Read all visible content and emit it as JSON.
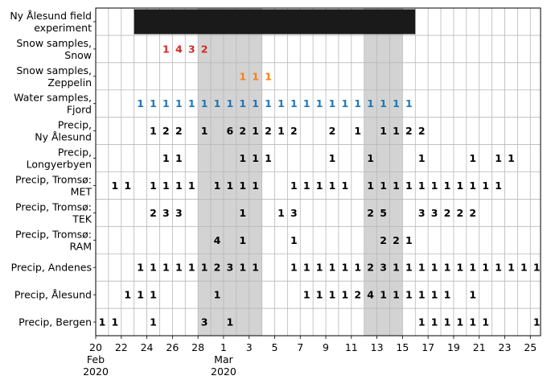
{
  "chart_data": {
    "type": "table",
    "row_labels": [
      [
        "Ny Ålesund field",
        "experiment"
      ],
      [
        "Snow samples,",
        "Snow"
      ],
      [
        "Snow samples,",
        "Zeppelin"
      ],
      [
        "Water samples,",
        "Fjord"
      ],
      [
        "Precip,",
        "Ny Ålesund"
      ],
      [
        "Precip,",
        "Longyerbyen"
      ],
      [
        "Precip, Tromsø:",
        "MET"
      ],
      [
        "Precip, Tromsø:",
        "TEK"
      ],
      [
        "Precip, Tromsø:",
        "RAM"
      ],
      [
        "Precip, Andenes"
      ],
      [
        "Precip, Ålesund"
      ],
      [
        "Precip, Bergen"
      ]
    ],
    "x_ticks": [
      {
        "day": 0,
        "lines": [
          "20",
          "Feb",
          "2020"
        ]
      },
      {
        "day": 2,
        "lines": [
          "22"
        ]
      },
      {
        "day": 4,
        "lines": [
          "24"
        ]
      },
      {
        "day": 6,
        "lines": [
          "26"
        ]
      },
      {
        "day": 8,
        "lines": [
          "28"
        ]
      },
      {
        "day": 10,
        "lines": [
          "1",
          "Mar",
          "2020"
        ]
      },
      {
        "day": 12,
        "lines": [
          "3"
        ]
      },
      {
        "day": 14,
        "lines": [
          "5"
        ]
      },
      {
        "day": 16,
        "lines": [
          "7"
        ]
      },
      {
        "day": 18,
        "lines": [
          "9"
        ]
      },
      {
        "day": 20,
        "lines": [
          "11"
        ]
      },
      {
        "day": 22,
        "lines": [
          "13"
        ]
      },
      {
        "day": 24,
        "lines": [
          "15"
        ]
      },
      {
        "day": 26,
        "lines": [
          "17"
        ]
      },
      {
        "day": 28,
        "lines": [
          "19"
        ]
      },
      {
        "day": 30,
        "lines": [
          "21"
        ]
      },
      {
        "day": 32,
        "lines": [
          "23"
        ]
      },
      {
        "day": 34,
        "lines": [
          "25"
        ]
      }
    ],
    "x_range_days": [
      0,
      34.8
    ],
    "shaded_periods": [
      {
        "start": "2020-02-28",
        "end": "2020-03-04"
      },
      {
        "start": "2020-03-12",
        "end": "2020-03-15"
      }
    ],
    "experiment_bar": {
      "row": 0,
      "start": "2020-02-23",
      "end": "2020-03-16",
      "color": "#1a1a1a"
    },
    "rows": [
      {
        "row": 1,
        "color": "#d62728",
        "start": "2020-02-25",
        "values": [
          "1",
          "4",
          "3",
          "2"
        ]
      },
      {
        "row": 2,
        "color": "#ff7f0e",
        "start": "2020-03-02",
        "values": [
          "1",
          "1",
          "1"
        ]
      },
      {
        "row": 3,
        "color": "#1f77b4",
        "start": "2020-02-23",
        "values": [
          "1",
          "1",
          "1",
          "1",
          "1",
          "1",
          "1",
          "1",
          "1",
          "1",
          "1",
          "1",
          "1",
          "1",
          "1",
          "1",
          "1",
          "1",
          "1",
          "1",
          "1",
          "1"
        ]
      },
      {
        "row": 4,
        "color": "#000000",
        "start": "2020-02-24",
        "values": [
          "1",
          "2",
          "2",
          "",
          "1",
          "",
          "6",
          "2",
          "1",
          "2",
          "1",
          "2",
          "",
          "",
          "2",
          "",
          "1",
          "",
          "1",
          "1",
          "2",
          "2"
        ]
      },
      {
        "row": 5,
        "color": "#000000",
        "start": "2020-02-25",
        "values": [
          "1",
          "1",
          "",
          "",
          "",
          "",
          "1",
          "1",
          "1",
          "",
          "",
          "",
          "",
          "1",
          "",
          "",
          "1",
          "",
          "",
          "",
          "1",
          "",
          "",
          "",
          "1",
          "",
          "1",
          "1"
        ]
      },
      {
        "row": 6,
        "color": "#000000",
        "start": "2020-02-21",
        "values": [
          "1",
          "1",
          "",
          "1",
          "1",
          "1",
          "1",
          "",
          "1",
          "1",
          "1",
          "1",
          "",
          "",
          "1",
          "1",
          "1",
          "1",
          "1",
          "",
          "1",
          "1",
          "1",
          "1",
          "1",
          "1",
          "1",
          "1",
          "1",
          "1",
          "1"
        ]
      },
      {
        "row": 7,
        "color": "#000000",
        "start": "2020-02-24",
        "values": [
          "2",
          "3",
          "3",
          "",
          "",
          "",
          "",
          "1",
          "",
          "",
          "1",
          "3",
          "",
          "",
          "",
          "",
          "",
          "2",
          "5",
          "",
          "",
          "3",
          "3",
          "2",
          "2",
          "2"
        ]
      },
      {
        "row": 8,
        "color": "#000000",
        "start": "2020-02-29",
        "values": [
          "4",
          "",
          "1",
          "",
          "",
          "",
          "1",
          "",
          "",
          "",
          "",
          "",
          "",
          "2",
          "2",
          "1"
        ]
      },
      {
        "row": 9,
        "color": "#000000",
        "start": "2020-02-23",
        "values": [
          "1",
          "1",
          "1",
          "1",
          "1",
          "1",
          "2",
          "3",
          "1",
          "1",
          "",
          "",
          "1",
          "1",
          "1",
          "1",
          "1",
          "1",
          "2",
          "3",
          "1",
          "1",
          "1",
          "1",
          "1",
          "1",
          "1",
          "1",
          "1",
          "1",
          "1",
          "1"
        ]
      },
      {
        "row": 10,
        "color": "#000000",
        "start": "2020-02-22",
        "values": [
          "1",
          "1",
          "1",
          "",
          "",
          "",
          "",
          "1",
          "",
          "",
          "",
          "",
          "",
          "",
          "1",
          "1",
          "1",
          "1",
          "2",
          "4",
          "1",
          "1",
          "1",
          "1",
          "1",
          "1",
          "",
          "1"
        ]
      },
      {
        "row": 11,
        "color": "#000000",
        "start": "2020-02-20",
        "values": [
          "1",
          "1",
          "",
          "",
          "1",
          "",
          "",
          "",
          "3",
          "",
          "1",
          "",
          "",
          "",
          "",
          "",
          "",
          "",
          "",
          "",
          "",
          "",
          "",
          "",
          "",
          "1",
          "1",
          "1",
          "1",
          "1",
          "1",
          "",
          "",
          "",
          "1"
        ]
      }
    ]
  }
}
